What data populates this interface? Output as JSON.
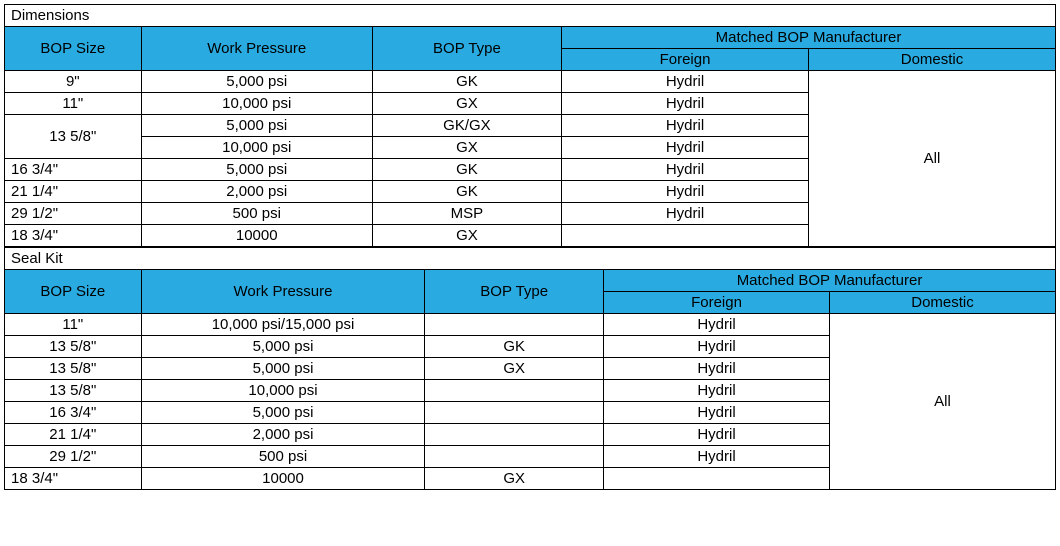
{
  "colors": {
    "header_bg": "#29abe2",
    "border": "#000000",
    "text": "#000000",
    "bg": "#ffffff"
  },
  "dimensions": {
    "section_title": "Dimensions",
    "headers": {
      "bop_size": "BOP Size",
      "work_pressure": "Work Pressure",
      "bop_type": "BOP Type",
      "matched": "Matched BOP Manufacturer",
      "foreign": "Foreign",
      "domestic": "Domestic"
    },
    "rows": [
      {
        "size": "9\"",
        "pressure": "5,000 psi",
        "type": "GK",
        "foreign": "Hydril",
        "size_align": "center"
      },
      {
        "size": "11\"",
        "pressure": "10,000 psi",
        "type": "GX",
        "foreign": "Hydril",
        "size_align": "center"
      },
      {
        "size": "13 5/8\"",
        "pressure": "5,000 psi",
        "type": "GK/GX",
        "foreign": "Hydril",
        "size_merge_down": true,
        "size_align": "center"
      },
      {
        "size": "",
        "pressure": "10,000 psi",
        "type": "GX",
        "foreign": "Hydril"
      },
      {
        "size": "16 3/4\"",
        "pressure": "5,000 psi",
        "type": "GK",
        "foreign": "Hydril",
        "size_align": "left"
      },
      {
        "size": "21 1/4\"",
        "pressure": "2,000 psi",
        "type": "GK",
        "foreign": "Hydril",
        "size_align": "left"
      },
      {
        "size": "29 1/2\"",
        "pressure": "500 psi",
        "type": "MSP",
        "foreign": "Hydril",
        "size_align": "left"
      },
      {
        "size": "18 3/4\"",
        "pressure": "10000",
        "type": "GX",
        "foreign": "",
        "size_align": "left"
      }
    ],
    "domestic_all": "All"
  },
  "sealkit": {
    "section_title": "Seal Kit",
    "headers": {
      "bop_size": "BOP Size",
      "work_pressure": "Work Pressure",
      "bop_type": "BOP Type",
      "matched": "Matched BOP Manufacturer",
      "foreign": "Foreign",
      "domestic": "Domestic"
    },
    "rows": [
      {
        "size": "11\"",
        "pressure": "10,000 psi/15,000 psi",
        "type": "",
        "foreign": "Hydril",
        "size_align": "center"
      },
      {
        "size": "13 5/8\"",
        "pressure": "5,000 psi",
        "type": "GK",
        "foreign": "Hydril",
        "size_align": "center"
      },
      {
        "size": "13 5/8\"",
        "pressure": "5,000 psi",
        "type": "GX",
        "foreign": "Hydril",
        "size_align": "center"
      },
      {
        "size": "13 5/8\"",
        "pressure": "10,000 psi",
        "type": "",
        "foreign": "Hydril",
        "size_align": "center"
      },
      {
        "size": "16 3/4\"",
        "pressure": "5,000 psi",
        "type": "",
        "foreign": "Hydril",
        "size_align": "center"
      },
      {
        "size": "21 1/4\"",
        "pressure": "2,000 psi",
        "type": "",
        "foreign": "Hydril",
        "size_align": "center"
      },
      {
        "size": "29 1/2\"",
        "pressure": "500 psi",
        "type": "",
        "foreign": "Hydril",
        "size_align": "center"
      },
      {
        "size": "18 3/4\"",
        "pressure": "10000",
        "type": "GX",
        "foreign": "",
        "size_align": "left"
      }
    ],
    "domestic_all": "All"
  }
}
